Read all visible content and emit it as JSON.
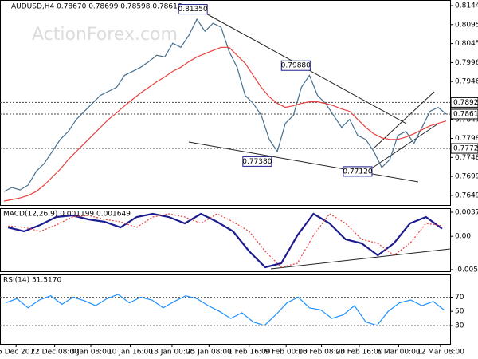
{
  "chart_data": [
    {
      "type": "line",
      "title": "AUDUSD,H4  0.78670 0.78699 0.78598 0.78616",
      "watermark": "ActionForex.com",
      "ylim": [
        0.76223,
        0.8157
      ],
      "yticks": [
        0.81445,
        0.8095,
        0.80455,
        0.7996,
        0.79465,
        0.78475,
        0.7798,
        0.77485,
        0.7699,
        0.76495
      ],
      "xticks": [
        {
          "value": 1.5,
          "label": "15 Dec 2017"
        },
        {
          "value": 6.3,
          "label": "22 Dec 08:00"
        },
        {
          "value": 10.8,
          "label": "3 Jan 08:00"
        },
        {
          "value": 15.7,
          "label": "10 Jan 16:00"
        },
        {
          "value": 20.9,
          "label": "18 Jan 00:00"
        },
        {
          "value": 25.5,
          "label": "25 Jan 08:00"
        },
        {
          "value": 30.5,
          "label": "1 Feb 16:00"
        },
        {
          "value": 35.1,
          "label": "9 Feb 00:00"
        },
        {
          "value": 39.5,
          "label": "16 Feb 08:00"
        },
        {
          "value": 44.2,
          "label": "23 Feb 16:00"
        },
        {
          "value": 49.1,
          "label": "5 Mar 00:00"
        },
        {
          "value": 54.3,
          "label": "12 Mar 08:00"
        }
      ],
      "series": [
        {
          "name": "Close",
          "color": "#47708f",
          "values": [
            0.76596,
            0.76701,
            0.76638,
            0.76763,
            0.77119,
            0.77328,
            0.77641,
            0.77955,
            0.78164,
            0.78477,
            0.78686,
            0.78895,
            0.79104,
            0.79209,
            0.79313,
            0.79627,
            0.79731,
            0.79836,
            0.79982,
            0.80149,
            0.80107,
            0.80463,
            0.80358,
            0.80672,
            0.8109,
            0.80776,
            0.80985,
            0.80881,
            0.80254,
            0.79836,
            0.79104,
            0.78895,
            0.78582,
            0.77955,
            0.77641,
            0.78373,
            0.78582,
            0.79313,
            0.79627,
            0.79104,
            0.78895,
            0.78582,
            0.78268,
            0.78477,
            0.78059,
            0.77955,
            0.77641,
            0.77223,
            0.77432,
            0.78059,
            0.78164,
            0.7785,
            0.78268,
            0.78686,
            0.78791,
            0.78616
          ]
        },
        {
          "name": "MA",
          "color": "#e8423f",
          "values": [
            0.76345,
            0.76387,
            0.76429,
            0.76492,
            0.76596,
            0.76763,
            0.76972,
            0.77181,
            0.77432,
            0.77641,
            0.7785,
            0.78059,
            0.78268,
            0.78477,
            0.78644,
            0.78832,
            0.79,
            0.79167,
            0.79313,
            0.79459,
            0.79585,
            0.79731,
            0.79836,
            0.79982,
            0.80107,
            0.80191,
            0.80275,
            0.80358,
            0.80358,
            0.80149,
            0.7994,
            0.79627,
            0.79313,
            0.79062,
            0.78895,
            0.78791,
            0.78832,
            0.78895,
            0.78937,
            0.78937,
            0.78895,
            0.78832,
            0.78749,
            0.78686,
            0.78477,
            0.78268,
            0.78101,
            0.77996,
            0.77955,
            0.77955,
            0.78017,
            0.78101,
            0.78205,
            0.7831,
            0.78373,
            0.78435
          ]
        }
      ],
      "annotations": [
        {
          "label": "0.81350",
          "value": 0.8135,
          "index": 23.5
        },
        {
          "label": "0.79880",
          "value": 0.7988,
          "index": 36.3
        },
        {
          "label": "0.77380",
          "value": 0.7738,
          "index": 31.5
        },
        {
          "label": "0.77120",
          "value": 0.7712,
          "index": 44
        }
      ],
      "levels": [
        {
          "label": "0.78920",
          "value": 0.7892,
          "color": "#ffffff"
        },
        {
          "label": "0.78616",
          "value": 0.78616,
          "color": "#ffffff"
        },
        {
          "label": "0.77720",
          "value": 0.7772,
          "color": "#ffffff"
        }
      ]
    },
    {
      "type": "line",
      "title": "MACD(12,26,9) 0.001199 0.001649",
      "ylim": [
        -0.005465,
        0.004261
      ],
      "yticks": [
        0.003762,
        {
          "value": 0,
          "label": "0.00"
        },
        -0.005216
      ],
      "series": [
        {
          "name": "MACD",
          "color": "#1c1c8f",
          "values": [
            0.001393,
            0.000769,
            0.001767,
            0.003014,
            0.003263,
            0.00264,
            0.002266,
            0.001393,
            0.003014,
            0.003513,
            0.003014,
            0.002016,
            0.003513,
            0.002266,
            0.000769,
            -0.002348,
            -0.004842,
            -0.004218,
            0.000146,
            0.003513,
            0.002016,
            -0.000478,
            -0.001101,
            -0.002972,
            -0.001101,
            0.002016,
            0.003014,
            0.001199
          ]
        },
        {
          "name": "Signal",
          "color": "#e8423f",
          "values": [
            0.0016,
            0.001393,
            0.000769,
            0.001767,
            0.003014,
            0.003263,
            0.00264,
            0.002266,
            0.001393,
            0.003014,
            0.003513,
            0.003014,
            0.002016,
            0.003513,
            0.002266,
            0.000769,
            -0.002348,
            -0.004842,
            -0.004218,
            0.000146,
            0.003513,
            0.002016,
            -0.000478,
            -0.001101,
            -0.002972,
            -0.001101,
            0.002016,
            0.001649
          ]
        }
      ]
    },
    {
      "type": "line",
      "title": "RSI(14) 51.5170",
      "ylim": [
        4,
        101
      ],
      "yticks": [
        70,
        50,
        30
      ],
      "levels": [
        70,
        30
      ],
      "series": [
        {
          "name": "RSI",
          "color": "#1e90ff",
          "values": [
            62,
            68,
            55,
            66,
            72,
            60,
            70,
            65,
            58,
            68,
            74,
            62,
            70,
            66,
            55,
            64,
            72,
            68,
            58,
            50,
            40,
            48,
            35,
            30,
            45,
            62,
            70,
            55,
            52,
            40,
            45,
            58,
            35,
            30,
            50,
            62,
            66,
            58,
            64,
            51.517
          ]
        }
      ]
    }
  ]
}
